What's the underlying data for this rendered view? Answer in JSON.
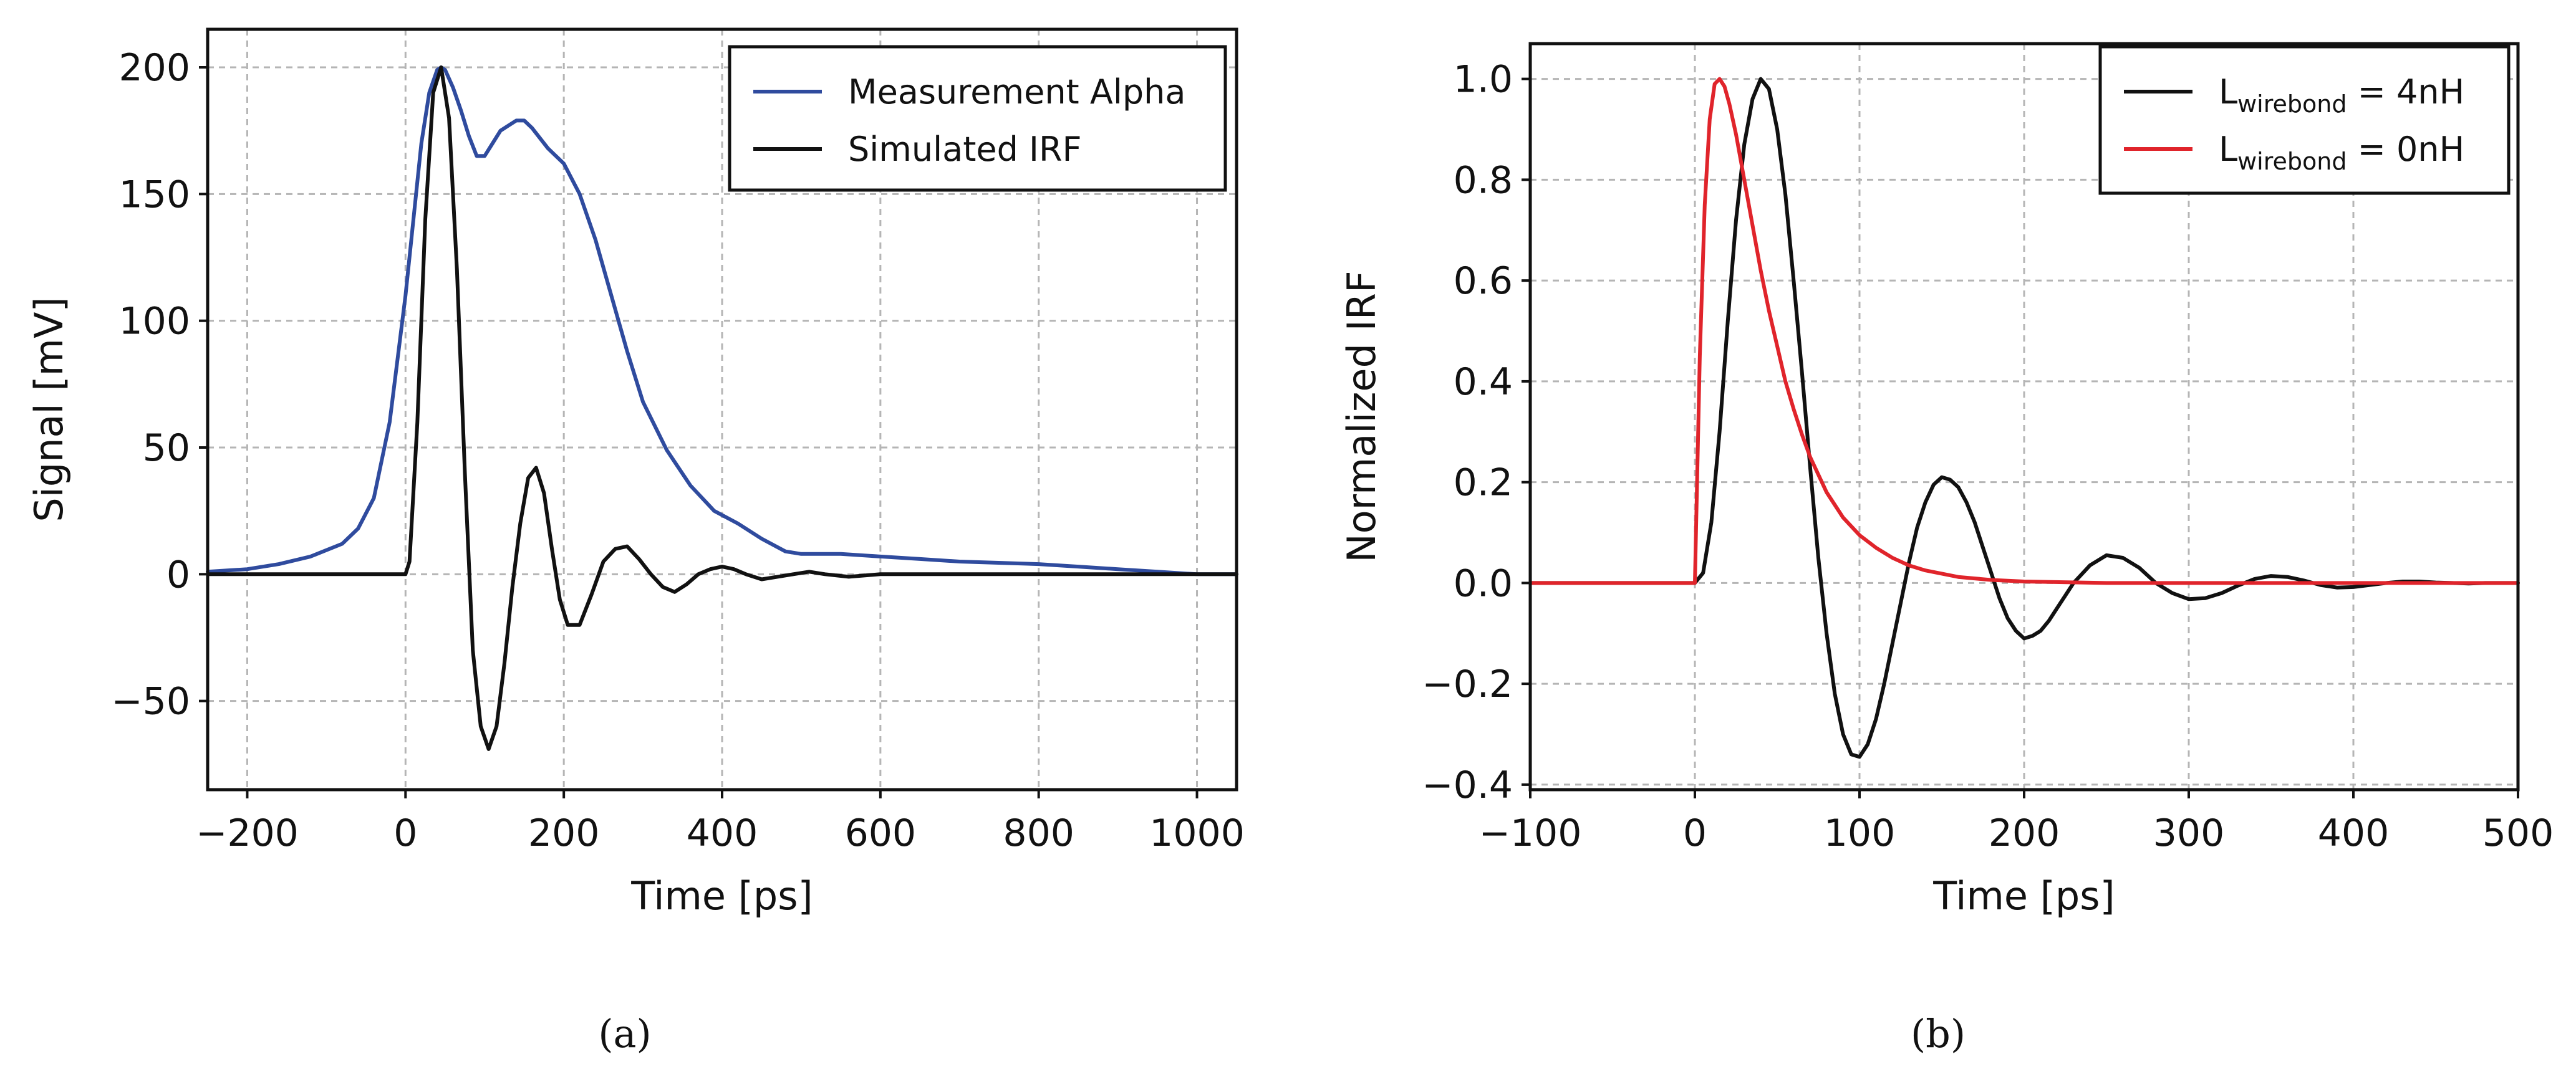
{
  "chart_data": [
    {
      "type": "line",
      "panel_label": "(a)",
      "title": "",
      "xlabel": "Time [ps]",
      "ylabel": "Signal [mV]",
      "xlim": [
        -250,
        1050
      ],
      "ylim": [
        -85,
        215
      ],
      "xticks": [
        -200,
        0,
        200,
        400,
        600,
        800,
        1000
      ],
      "yticks": [
        -50,
        0,
        50,
        100,
        150,
        200
      ],
      "xtick_labels": [
        "−200",
        "0",
        "200",
        "400",
        "600",
        "800",
        "1000"
      ],
      "ytick_labels": [
        "−50",
        "0",
        "50",
        "100",
        "150",
        "200"
      ],
      "grid": true,
      "legend_position": "top-right",
      "series": [
        {
          "name": "Measurement Alpha",
          "color": "#2f4b9e",
          "x": [
            -250,
            -200,
            -160,
            -120,
            -80,
            -60,
            -40,
            -20,
            0,
            10,
            20,
            30,
            40,
            45,
            50,
            60,
            70,
            80,
            90,
            100,
            110,
            120,
            130,
            140,
            150,
            160,
            170,
            180,
            200,
            220,
            240,
            260,
            280,
            300,
            330,
            360,
            390,
            420,
            450,
            480,
            500,
            550,
            600,
            650,
            700,
            800,
            850,
            900,
            950,
            1000,
            1050
          ],
          "y": [
            1,
            2,
            4,
            7,
            12,
            18,
            30,
            60,
            110,
            140,
            170,
            190,
            199,
            200,
            199,
            192,
            183,
            173,
            165,
            165,
            170,
            175,
            177,
            179,
            179,
            176,
            172,
            168,
            162,
            150,
            132,
            110,
            88,
            68,
            49,
            35,
            25,
            20,
            14,
            9,
            8,
            8,
            7,
            6,
            5,
            4,
            3,
            2,
            1,
            0,
            0
          ]
        },
        {
          "name": "Simulated IRF",
          "color": "#111111",
          "x": [
            -250,
            0,
            5,
            15,
            25,
            35,
            45,
            55,
            65,
            75,
            85,
            95,
            105,
            115,
            125,
            135,
            145,
            155,
            165,
            175,
            185,
            195,
            205,
            220,
            235,
            250,
            265,
            280,
            295,
            310,
            325,
            340,
            355,
            370,
            385,
            400,
            415,
            430,
            450,
            470,
            490,
            510,
            530,
            560,
            600,
            700,
            800,
            900,
            1000,
            1050
          ],
          "y": [
            0,
            0,
            5,
            60,
            140,
            190,
            200,
            180,
            120,
            40,
            -30,
            -60,
            -69,
            -60,
            -35,
            -5,
            20,
            38,
            42,
            32,
            10,
            -10,
            -20,
            -20,
            -8,
            5,
            10,
            11,
            6,
            0,
            -5,
            -7,
            -4,
            0,
            2,
            3,
            2,
            0,
            -2,
            -1,
            0,
            1,
            0,
            -1,
            0,
            0,
            0,
            0,
            0,
            0
          ]
        }
      ]
    },
    {
      "type": "line",
      "panel_label": "(b)",
      "title": "",
      "xlabel": "Time [ps]",
      "ylabel": "Normalized IRF",
      "xlim": [
        -100,
        500
      ],
      "ylim": [
        -0.41,
        1.07
      ],
      "xticks": [
        -100,
        0,
        100,
        200,
        300,
        400,
        500
      ],
      "yticks": [
        -0.4,
        -0.2,
        0.0,
        0.2,
        0.4,
        0.6,
        0.8,
        1.0
      ],
      "xtick_labels": [
        "−100",
        "0",
        "100",
        "200",
        "300",
        "400",
        "500"
      ],
      "ytick_labels": [
        "−0.4",
        "−0.2",
        "0.0",
        "0.2",
        "0.4",
        "0.6",
        "0.8",
        "1.0"
      ],
      "grid": true,
      "legend_position": "top-right",
      "series": [
        {
          "name": "L",
          "name_sub": "wirebond",
          "name_suffix": " = 4nH",
          "color": "#111111",
          "x": [
            -100,
            0,
            5,
            10,
            15,
            20,
            25,
            30,
            35,
            40,
            45,
            50,
            55,
            60,
            65,
            70,
            75,
            80,
            85,
            90,
            95,
            100,
            105,
            110,
            115,
            120,
            125,
            130,
            135,
            140,
            145,
            150,
            155,
            160,
            165,
            170,
            175,
            180,
            185,
            190,
            195,
            200,
            205,
            210,
            215,
            220,
            225,
            230,
            240,
            250,
            260,
            270,
            280,
            290,
            300,
            310,
            320,
            330,
            340,
            350,
            360,
            370,
            380,
            390,
            400,
            410,
            420,
            430,
            440,
            450,
            460,
            470,
            480,
            490,
            500
          ],
          "y": [
            0,
            0,
            0.02,
            0.12,
            0.3,
            0.52,
            0.72,
            0.87,
            0.96,
            1.0,
            0.98,
            0.9,
            0.77,
            0.6,
            0.42,
            0.23,
            0.05,
            -0.1,
            -0.22,
            -0.3,
            -0.34,
            -0.345,
            -0.32,
            -0.27,
            -0.2,
            -0.12,
            -0.04,
            0.04,
            0.11,
            0.16,
            0.195,
            0.21,
            0.205,
            0.19,
            0.16,
            0.12,
            0.07,
            0.02,
            -0.03,
            -0.07,
            -0.095,
            -0.11,
            -0.105,
            -0.095,
            -0.075,
            -0.05,
            -0.025,
            0.0,
            0.035,
            0.055,
            0.05,
            0.03,
            0.0,
            -0.02,
            -0.032,
            -0.03,
            -0.02,
            -0.005,
            0.008,
            0.014,
            0.012,
            0.005,
            -0.004,
            -0.009,
            -0.008,
            -0.004,
            0.0,
            0.003,
            0.003,
            0.001,
            0.0,
            -0.001,
            0.0,
            0.0,
            0.0
          ]
        },
        {
          "name": "L",
          "name_sub": "wirebond",
          "name_suffix": " = 0nH",
          "color": "#e0242b",
          "x": [
            -100,
            0,
            3,
            6,
            9,
            12,
            15,
            18,
            21,
            25,
            30,
            35,
            40,
            45,
            50,
            55,
            60,
            65,
            70,
            75,
            80,
            90,
            100,
            110,
            120,
            130,
            140,
            160,
            180,
            200,
            250,
            300,
            400,
            500
          ],
          "y": [
            0,
            0,
            0.45,
            0.75,
            0.92,
            0.99,
            1.0,
            0.985,
            0.95,
            0.89,
            0.8,
            0.71,
            0.62,
            0.54,
            0.47,
            0.4,
            0.345,
            0.295,
            0.25,
            0.215,
            0.18,
            0.13,
            0.095,
            0.07,
            0.05,
            0.035,
            0.025,
            0.012,
            0.006,
            0.003,
            0.0,
            0.0,
            0.0,
            0.0
          ]
        }
      ]
    }
  ]
}
